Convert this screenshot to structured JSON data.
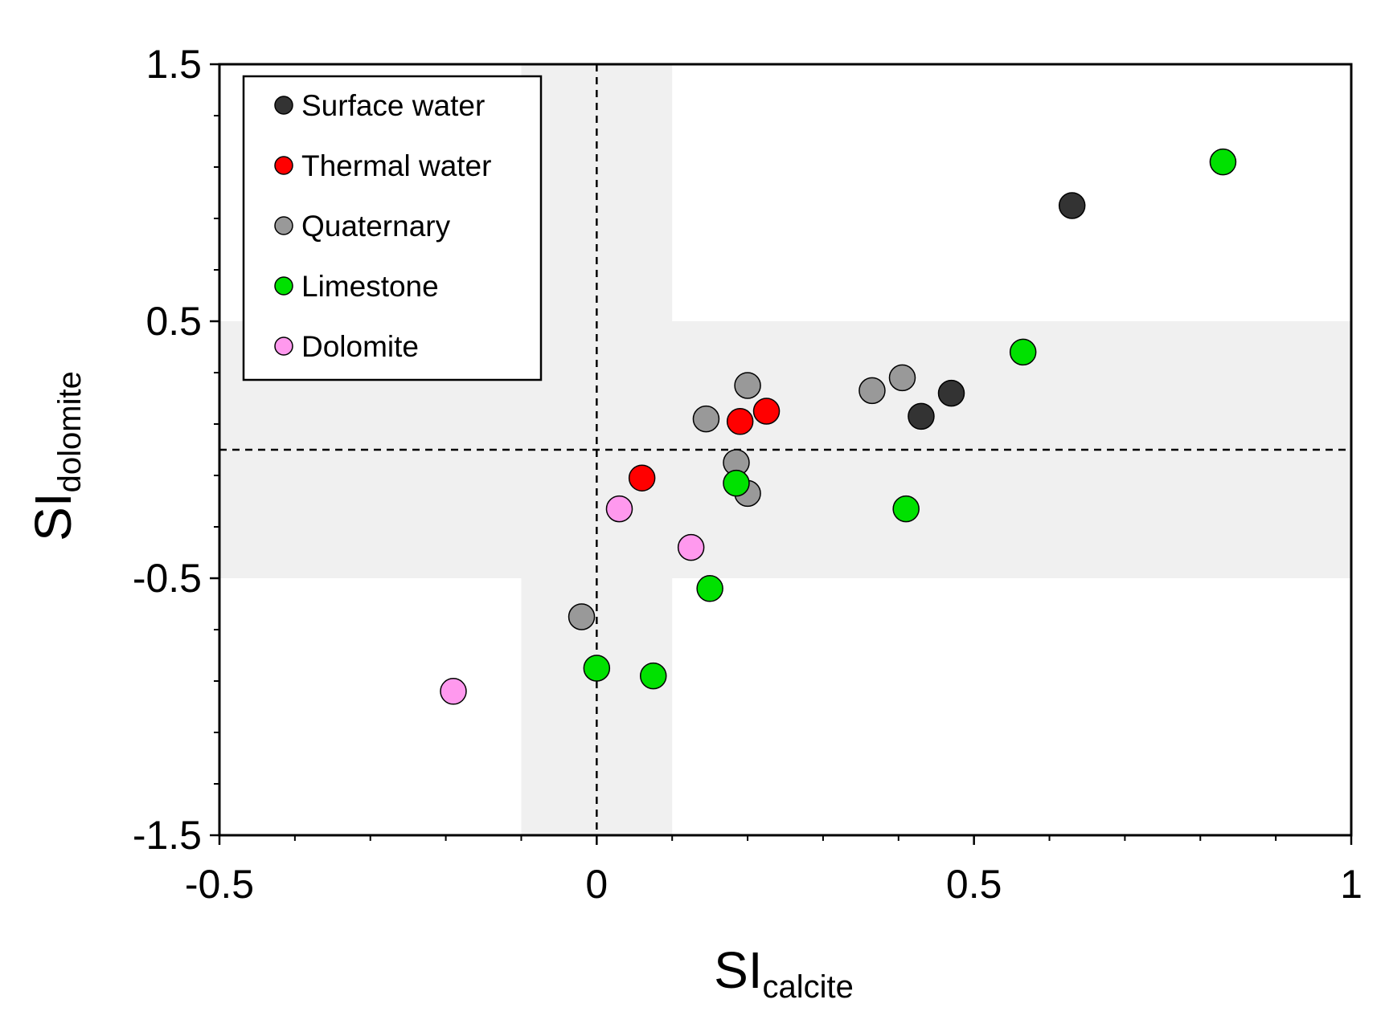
{
  "chart_data": {
    "type": "scatter",
    "xlabel": {
      "main": "SI",
      "sub": "calcite"
    },
    "ylabel": {
      "main": "SI",
      "sub": "dolomite"
    },
    "xlim": [
      -0.5,
      1
    ],
    "ylim": [
      -1.5,
      1.5
    ],
    "xticks": [
      -0.5,
      0,
      0.5,
      1
    ],
    "xtick_labels": [
      "-0.5",
      "0",
      "0.5",
      "1"
    ],
    "yticks": [
      -1.5,
      -0.5,
      0.5,
      1.5
    ],
    "ytick_labels": [
      "-1.5",
      "-0.5",
      "0.5",
      "1.5"
    ],
    "grid": false,
    "legend_position": "top-left",
    "reference_lines": [
      {
        "axis": "x",
        "value": 0,
        "style": "dashed"
      },
      {
        "axis": "y",
        "value": 0,
        "style": "dashed"
      }
    ],
    "shaded_bands": [
      {
        "axis": "x",
        "from": -0.1,
        "to": 0.1,
        "color": "#f0f0f0"
      },
      {
        "axis": "y",
        "from": -0.5,
        "to": 0.5,
        "color": "#f0f0f0"
      }
    ],
    "series": [
      {
        "name": "Surface water",
        "color": "#333333",
        "points": [
          [
            0.63,
            0.95
          ],
          [
            0.47,
            0.22
          ],
          [
            0.43,
            0.13
          ]
        ]
      },
      {
        "name": "Thermal water",
        "color": "#ff0000",
        "points": [
          [
            0.06,
            -0.11
          ],
          [
            0.19,
            0.11
          ],
          [
            0.225,
            0.15
          ]
        ]
      },
      {
        "name": "Quaternary",
        "color": "#999999",
        "points": [
          [
            -0.02,
            -0.65
          ],
          [
            0.145,
            0.12
          ],
          [
            0.185,
            -0.05
          ],
          [
            0.2,
            0.25
          ],
          [
            0.2,
            -0.17
          ],
          [
            0.365,
            0.23
          ],
          [
            0.405,
            0.28
          ]
        ]
      },
      {
        "name": "Limestone",
        "color": "#00e100",
        "points": [
          [
            0.0,
            -0.85
          ],
          [
            0.075,
            -0.88
          ],
          [
            0.15,
            -0.54
          ],
          [
            0.185,
            -0.13
          ],
          [
            0.41,
            -0.23
          ],
          [
            0.565,
            0.38
          ],
          [
            0.83,
            1.12
          ]
        ]
      },
      {
        "name": "Dolomite",
        "color": "#ff99ee",
        "points": [
          [
            -0.19,
            -0.94
          ],
          [
            0.03,
            -0.23
          ],
          [
            0.125,
            -0.38
          ]
        ]
      }
    ]
  }
}
